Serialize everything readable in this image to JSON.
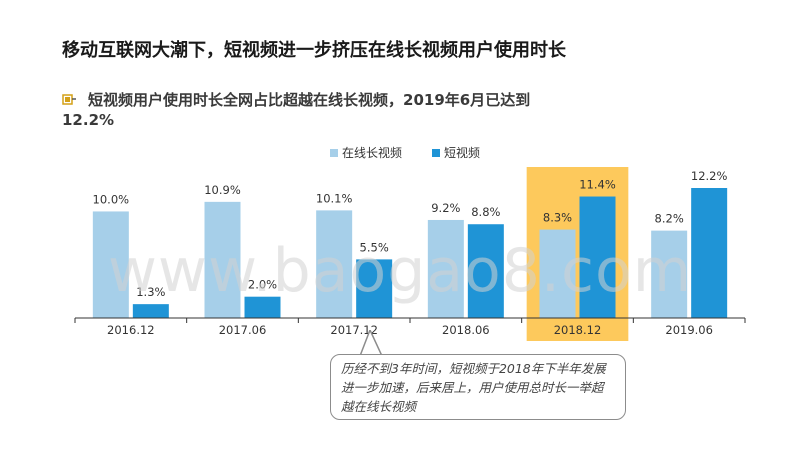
{
  "title": "移动互联网大潮下，短视频进一步挤压在线长视频用户使用时长",
  "subtitle_line1": "短视频用户使用时长全网占比超越在线长视频，2019年6月已达到",
  "subtitle_line2": "12.2%",
  "watermark": "www.baogao8.com",
  "note": "历经不到3年时间，短视频于2018年下半年发展进一步加速，后来居上，用户使用总时长一举超越在线长视频",
  "colors": {
    "long_video": "#a6cfe9",
    "short_video": "#1f94d6",
    "highlight": "#fdc95c"
  },
  "chart_data": {
    "type": "bar",
    "categories": [
      "2016.12",
      "2017.06",
      "2017.12",
      "2018.06",
      "2018.12",
      "2019.06"
    ],
    "series": [
      {
        "name": "在线长视频",
        "values": [
          10.0,
          10.9,
          10.1,
          9.2,
          8.3,
          8.2
        ],
        "labels": [
          "10.0%",
          "10.9%",
          "10.1%",
          "9.2%",
          "8.3%",
          "8.2%"
        ]
      },
      {
        "name": "短视频",
        "values": [
          1.3,
          2.0,
          5.5,
          8.8,
          11.4,
          12.2
        ],
        "labels": [
          "1.3%",
          "2.0%",
          "5.5%",
          "8.8%",
          "11.4%",
          "12.2%"
        ]
      }
    ],
    "highlight_category": "2018.12",
    "legend": "top-center",
    "ylim": [
      0,
      14
    ]
  }
}
